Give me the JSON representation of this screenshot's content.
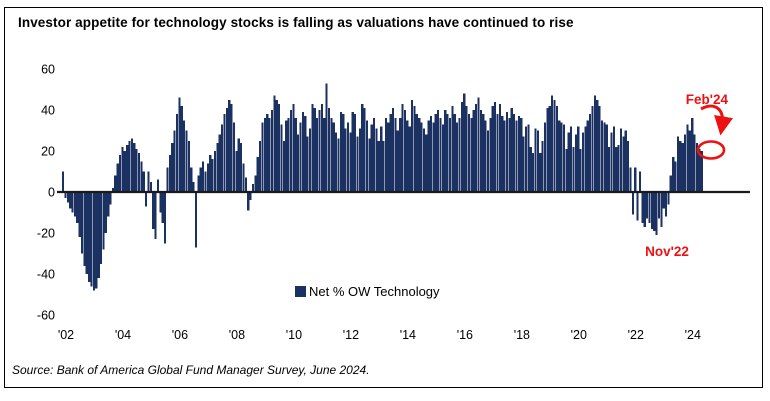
{
  "title": "Investor appetite for technology stocks is falling as valuations have continued to rise",
  "source": "Source: Bank of America Global Fund Manager Survey, June 2024.",
  "legend": {
    "label": "Net % OW Technology",
    "swatch_icon": "filled-square-icon"
  },
  "annotations": {
    "peak_label": "Feb'24",
    "trough_label": "Nov'22",
    "color": "#ee1111",
    "highlight_shape": "ellipse-around-latest-bar",
    "arrow_shape": "curved-arrow-down"
  },
  "colors": {
    "bar": "#1b3161",
    "zero_line": "#1a1a1a",
    "text": "#000000",
    "background": "#ffffff"
  },
  "chart_data": {
    "type": "bar",
    "title": "Investor appetite for technology stocks is falling as valuations have continued to rise",
    "series_name": "Net % OW Technology",
    "frequency": "monthly",
    "start": "2002-01",
    "end": "2024-06",
    "ylim": [
      -60,
      60
    ],
    "y_ticks": [
      60,
      40,
      20,
      0,
      -20,
      -40,
      -60
    ],
    "x_tick_labels": [
      "'02",
      "'04",
      "'06",
      "'08",
      "'10",
      "'12",
      "'14",
      "'16",
      "'18",
      "'20",
      "'22",
      "'24"
    ],
    "grid": false,
    "legend_position": "bottom-center",
    "values": [
      10,
      -3,
      -5,
      -8,
      -10,
      -12,
      -15,
      -22,
      -30,
      -36,
      -40,
      -44,
      -46,
      -48,
      -47,
      -42,
      -35,
      -28,
      -20,
      -12,
      -6,
      2,
      8,
      14,
      18,
      22,
      20,
      23,
      25,
      26,
      24,
      21,
      19,
      15,
      10,
      -7,
      10,
      5,
      -18,
      -23,
      6,
      -10,
      -15,
      -25,
      12,
      18,
      24,
      30,
      38,
      46,
      42,
      35,
      30,
      25,
      12,
      5,
      -27,
      8,
      12,
      15,
      10,
      14,
      18,
      16,
      20,
      24,
      28,
      33,
      38,
      41,
      45,
      43,
      34,
      20,
      26,
      24,
      14,
      7,
      -9,
      -4,
      4,
      8,
      17,
      25,
      34,
      36,
      38,
      36,
      40,
      47,
      45,
      43,
      33,
      25,
      35,
      36,
      40,
      43,
      36,
      28,
      34,
      39,
      37,
      27,
      31,
      43,
      41,
      36,
      40,
      43,
      36,
      53,
      41,
      36,
      34,
      29,
      26,
      39,
      38,
      31,
      34,
      29,
      39,
      38,
      27,
      31,
      43,
      41,
      35,
      26,
      33,
      36,
      31,
      25,
      32,
      25,
      36,
      34,
      38,
      41,
      36,
      30,
      36,
      43,
      40,
      35,
      32,
      45,
      42,
      38,
      36,
      34,
      31,
      28,
      35,
      37,
      34,
      38,
      40,
      36,
      33,
      40,
      38,
      36,
      42,
      38,
      34,
      36,
      44,
      48,
      42,
      38,
      36,
      40,
      43,
      46,
      40,
      38,
      35,
      30,
      36,
      42,
      44,
      38,
      43,
      37,
      35,
      39,
      36,
      41,
      38,
      35,
      37,
      36,
      27,
      32,
      33,
      22,
      19,
      31,
      30,
      19,
      25,
      34,
      41,
      42,
      47,
      45,
      42,
      35,
      34,
      33,
      21,
      29,
      32,
      22,
      28,
      32,
      21,
      29,
      32,
      35,
      38,
      42,
      47,
      45,
      42,
      35,
      34,
      33,
      22,
      29,
      32,
      22,
      23,
      31,
      27,
      30,
      25,
      12,
      -11,
      12,
      -14,
      10,
      -15,
      -17,
      -13,
      -15,
      -18,
      -19,
      -21,
      -13,
      -17,
      -8,
      -12,
      -6,
      8,
      17,
      15,
      27,
      25,
      24,
      28,
      33,
      30,
      36,
      28,
      24,
      21,
      20
    ],
    "annotated_points": {
      "feb_2024": 36,
      "nov_2022": -21,
      "jun_2024_latest": 20
    }
  }
}
